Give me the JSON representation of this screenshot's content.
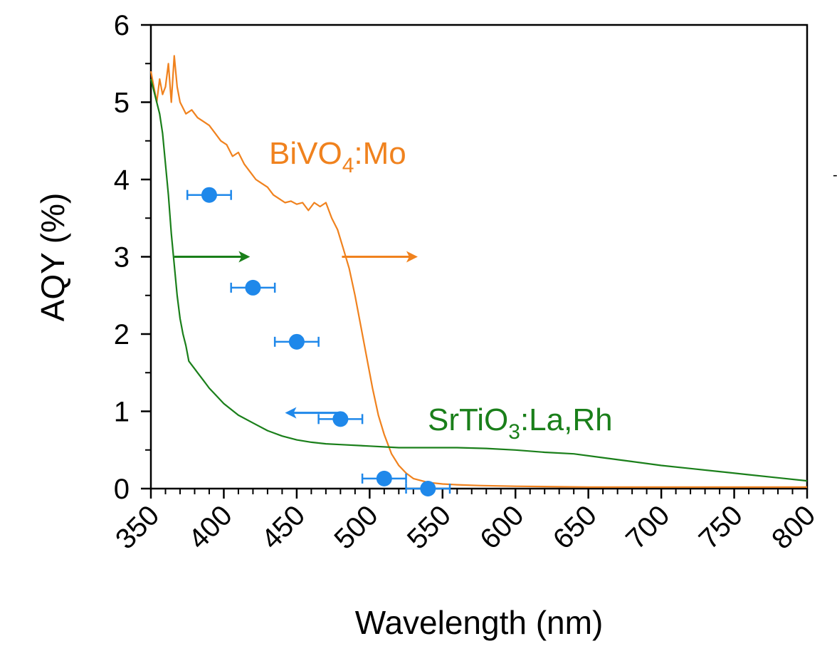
{
  "chart_data": {
    "type": "line",
    "xlabel": "Wavelength (nm)",
    "ylabel": "AQY (%)",
    "xlim": [
      350,
      800
    ],
    "ylim": [
      0,
      6
    ],
    "x_ticks": [
      350,
      400,
      450,
      500,
      550,
      600,
      650,
      700,
      750,
      800
    ],
    "y_ticks": [
      0,
      1,
      2,
      3,
      4,
      5,
      6
    ],
    "x_ticks_rotated": true,
    "grid": false,
    "colors": {
      "bivo4": "#f0821e",
      "srtio3": "#1a7f1a",
      "aqy": "#1f88ea"
    },
    "series": [
      {
        "name": "BiVO4:Mo",
        "label_main": "BiVO",
        "label_sub": "4",
        "label_tail": ":Mo",
        "kind": "spectrum",
        "x": [
          350,
          352,
          354,
          356,
          358,
          360,
          362,
          364,
          366,
          368,
          370,
          374,
          378,
          382,
          386,
          390,
          394,
          398,
          402,
          406,
          410,
          414,
          418,
          422,
          426,
          430,
          434,
          438,
          442,
          446,
          450,
          454,
          458,
          462,
          466,
          470,
          474,
          478,
          482,
          486,
          490,
          494,
          498,
          502,
          506,
          510,
          515,
          520,
          525,
          530,
          540,
          550,
          560,
          575,
          600,
          650,
          700,
          750,
          800
        ],
        "y": [
          5.4,
          5.2,
          5.0,
          5.3,
          5.1,
          5.2,
          5.5,
          5.0,
          5.6,
          5.2,
          5.0,
          4.85,
          4.9,
          4.8,
          4.75,
          4.7,
          4.6,
          4.5,
          4.45,
          4.3,
          4.35,
          4.2,
          4.1,
          4.0,
          3.95,
          3.9,
          3.8,
          3.75,
          3.7,
          3.72,
          3.68,
          3.7,
          3.6,
          3.7,
          3.65,
          3.7,
          3.5,
          3.35,
          3.1,
          2.85,
          2.5,
          2.1,
          1.7,
          1.3,
          0.95,
          0.7,
          0.45,
          0.3,
          0.2,
          0.13,
          0.08,
          0.06,
          0.05,
          0.04,
          0.03,
          0.02,
          0.02,
          0.02,
          0.02
        ]
      },
      {
        "name": "SrTiO3:La,Rh",
        "label_main": "SrTiO",
        "label_sub": "3",
        "label_tail": ":La,Rh",
        "kind": "spectrum",
        "x": [
          350,
          352,
          354,
          356,
          358,
          360,
          362,
          364,
          366,
          368,
          370,
          372,
          374,
          376,
          378,
          380,
          382,
          384,
          386,
          388,
          390,
          395,
          400,
          410,
          420,
          430,
          440,
          450,
          460,
          470,
          480,
          500,
          520,
          540,
          560,
          580,
          600,
          620,
          640,
          660,
          680,
          700,
          720,
          740,
          760,
          780,
          800
        ],
        "y": [
          5.3,
          5.15,
          5.0,
          4.85,
          4.6,
          4.2,
          3.8,
          3.3,
          2.9,
          2.5,
          2.2,
          2.0,
          1.85,
          1.65,
          1.6,
          1.55,
          1.5,
          1.45,
          1.4,
          1.35,
          1.3,
          1.2,
          1.1,
          0.95,
          0.85,
          0.75,
          0.68,
          0.63,
          0.6,
          0.58,
          0.57,
          0.55,
          0.53,
          0.53,
          0.53,
          0.52,
          0.5,
          0.47,
          0.45,
          0.4,
          0.35,
          0.3,
          0.26,
          0.22,
          0.18,
          0.14,
          0.1
        ]
      },
      {
        "name": "AQY",
        "kind": "points",
        "x": [
          390,
          420,
          450,
          480,
          510,
          540
        ],
        "y": [
          3.8,
          2.6,
          1.9,
          0.9,
          0.13,
          0.0
        ],
        "x_err": [
          15,
          15,
          15,
          15,
          15,
          15
        ]
      }
    ],
    "annotations": [
      {
        "type": "arrow",
        "color": "srtio3",
        "from": [
          366,
          3.0
        ],
        "to": [
          418,
          3.0
        ]
      },
      {
        "type": "arrow",
        "color": "bivo4",
        "from": [
          481,
          3.0
        ],
        "to": [
          533,
          3.0
        ]
      },
      {
        "type": "arrow",
        "color": "aqy",
        "from": [
          478,
          0.98
        ],
        "to": [
          442,
          0.98
        ]
      }
    ]
  }
}
